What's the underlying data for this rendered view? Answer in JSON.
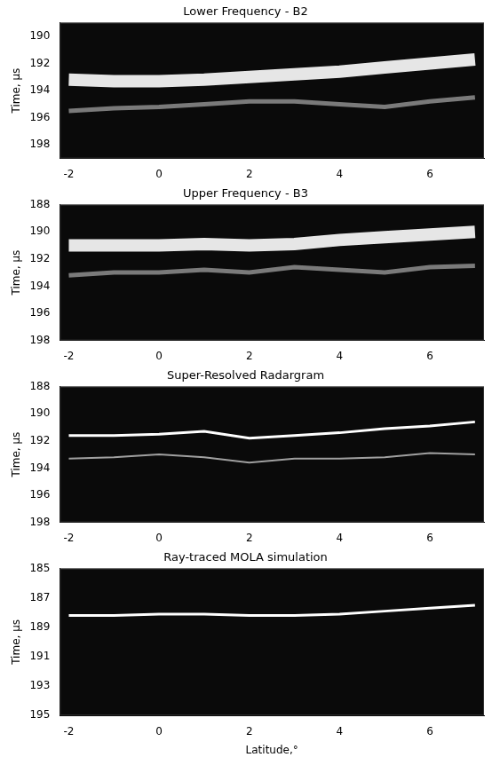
{
  "chart_data": [
    {
      "type": "line",
      "title": "Lower Frequency - B2",
      "y_label": "Time, μs",
      "x": [
        -2,
        -1,
        0,
        1,
        2,
        3,
        4,
        5,
        6,
        7
      ],
      "series": [
        {
          "color": "#e6e6e6",
          "values": [
            193.2,
            193.3,
            193.3,
            193.2,
            193.0,
            192.8,
            192.6,
            192.3,
            192.0,
            191.7
          ]
        },
        {
          "color": "#7a7a7a",
          "values": [
            195.5,
            195.3,
            195.2,
            195.0,
            194.8,
            194.8,
            195.0,
            195.2,
            194.8,
            194.5
          ]
        }
      ],
      "xlim": [
        -2.2,
        7.2
      ],
      "xticks": [
        -2,
        0,
        2,
        4,
        6
      ],
      "ylim": [
        189,
        199
      ],
      "yticks": [
        190,
        192,
        194,
        196,
        198
      ],
      "grid": false
    },
    {
      "type": "line",
      "title": "Upper Frequency - B3",
      "y_label": "Time, μs",
      "x": [
        -2,
        -1,
        0,
        1,
        2,
        3,
        4,
        5,
        6,
        7
      ],
      "series": [
        {
          "color": "#e6e6e6",
          "values": [
            191.0,
            191.0,
            191.0,
            190.9,
            191.0,
            190.9,
            190.6,
            190.4,
            190.2,
            190.0
          ]
        },
        {
          "color": "#7a7a7a",
          "values": [
            193.2,
            193.0,
            193.0,
            192.8,
            193.0,
            192.6,
            192.8,
            193.0,
            192.6,
            192.5
          ]
        }
      ],
      "xlim": [
        -2.2,
        7.2
      ],
      "xticks": [
        -2,
        0,
        2,
        4,
        6
      ],
      "ylim": [
        188,
        198
      ],
      "yticks": [
        188,
        190,
        192,
        194,
        196,
        198
      ],
      "grid": false
    },
    {
      "type": "line",
      "title": "Super-Resolved Radargram",
      "y_label": "Time, μs",
      "x": [
        -2,
        -1,
        0,
        1,
        2,
        3,
        4,
        5,
        6,
        7
      ],
      "series": [
        {
          "color": "#ffffff",
          "values": [
            191.6,
            191.6,
            191.5,
            191.3,
            191.8,
            191.6,
            191.4,
            191.1,
            190.9,
            190.6
          ]
        },
        {
          "color": "#a0a0a0",
          "values": [
            193.3,
            193.2,
            193.0,
            193.2,
            193.6,
            193.3,
            193.3,
            193.2,
            192.9,
            193.0
          ]
        }
      ],
      "xlim": [
        -2.2,
        7.2
      ],
      "xticks": [
        -2,
        0,
        2,
        4,
        6
      ],
      "ylim": [
        188,
        198
      ],
      "yticks": [
        188,
        190,
        192,
        194,
        196,
        198
      ],
      "grid": false
    },
    {
      "type": "line",
      "title": "Ray-traced MOLA simulation",
      "y_label": "Time, μs",
      "x_label": "Latitude,°",
      "x": [
        -2,
        -1,
        0,
        1,
        2,
        3,
        4,
        5,
        6,
        7
      ],
      "series": [
        {
          "color": "#ffffff",
          "values": [
            188.2,
            188.2,
            188.1,
            188.1,
            188.2,
            188.2,
            188.1,
            187.9,
            187.7,
            187.5
          ]
        }
      ],
      "xlim": [
        -2.2,
        7.2
      ],
      "xticks": [
        -2,
        0,
        2,
        4,
        6
      ],
      "ylim": [
        185,
        195
      ],
      "yticks": [
        185,
        187,
        189,
        191,
        193,
        195
      ],
      "grid": false
    }
  ]
}
